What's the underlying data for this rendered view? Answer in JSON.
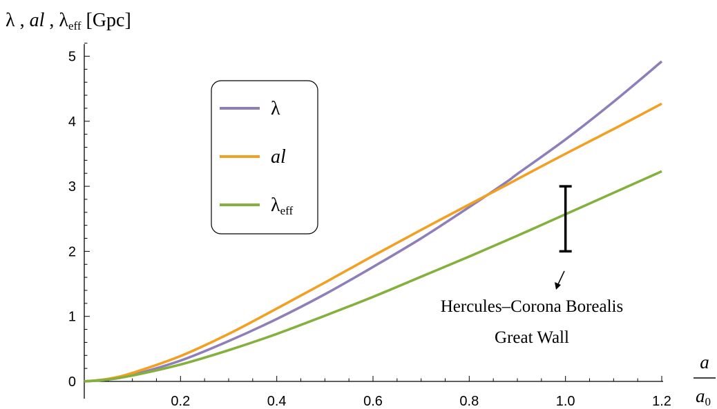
{
  "chart_data": {
    "type": "line",
    "ylabel": "λ , al , λeff [Gpc]",
    "ylabel_parts": {
      "lambda": "λ",
      "sep": " , ",
      "al": "al",
      "lambda_eff_base": "λ",
      "lambda_eff_sub": "eff",
      "unit": "[Gpc]"
    },
    "xlabel": {
      "numerator": "a",
      "denominator_base": "a",
      "denominator_sub": "0"
    },
    "xlim": [
      0,
      1.2
    ],
    "ylim": [
      0,
      5.2
    ],
    "x_ticks": [
      "0.2",
      "0.4",
      "0.6",
      "0.8",
      "1.0",
      "1.2"
    ],
    "y_ticks": [
      "0",
      "1",
      "2",
      "3",
      "4",
      "5"
    ],
    "grid": false,
    "legend_position": "upper-left",
    "series": [
      {
        "name": "λ",
        "color": "#8f7fb8",
        "x": [
          0,
          0.05,
          0.1,
          0.2,
          0.3,
          0.4,
          0.5,
          0.6,
          0.7,
          0.8,
          0.88,
          0.9,
          1.0,
          1.1,
          1.2
        ],
        "y": [
          0,
          0.03,
          0.1,
          0.32,
          0.62,
          0.96,
          1.34,
          1.76,
          2.2,
          2.68,
          3.08,
          3.19,
          3.72,
          4.3,
          4.92
        ]
      },
      {
        "name": "al",
        "color": "#f2a024",
        "x": [
          0,
          0.05,
          0.1,
          0.2,
          0.3,
          0.4,
          0.5,
          0.6,
          0.7,
          0.8,
          0.88,
          0.9,
          1.0,
          1.1,
          1.2
        ],
        "y": [
          0,
          0.04,
          0.13,
          0.39,
          0.73,
          1.12,
          1.52,
          1.93,
          2.33,
          2.72,
          3.03,
          3.11,
          3.5,
          3.88,
          4.27
        ]
      },
      {
        "name": "λeff",
        "color": "#84b13d",
        "x": [
          0,
          0.05,
          0.1,
          0.2,
          0.3,
          0.4,
          0.5,
          0.6,
          0.7,
          0.8,
          0.9,
          1.0,
          1.1,
          1.2
        ],
        "y": [
          0,
          0.03,
          0.09,
          0.26,
          0.48,
          0.73,
          1.01,
          1.3,
          1.61,
          1.92,
          2.24,
          2.57,
          2.9,
          3.23
        ]
      }
    ],
    "error_bar": {
      "x": 1.0,
      "y_low": 2.0,
      "y_high": 3.0,
      "color": "#000000"
    },
    "annotation": {
      "line1": "Hercules–Corona Borealis",
      "line2": "Great Wall"
    }
  }
}
